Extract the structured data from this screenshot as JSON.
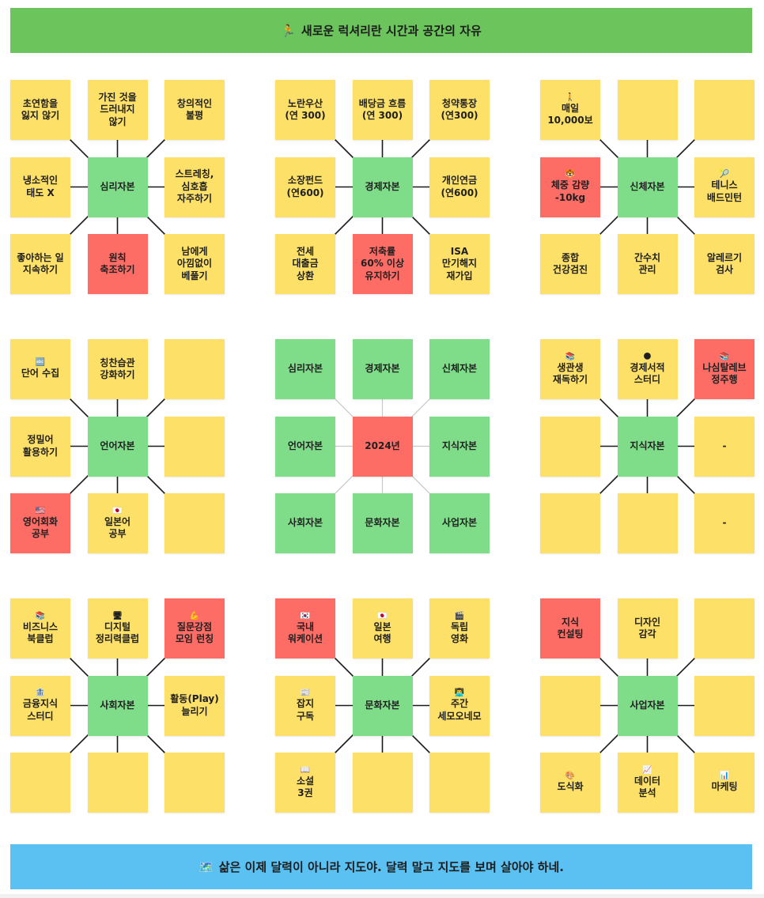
{
  "header": {
    "icon": "🏃",
    "title": "새로운 럭셔리란 시간과 공간의 자유"
  },
  "footer": {
    "icon": "🗺️",
    "text": "삶은 이제 달력이 아니라 지도야. 달력 말고 지도를 보며 살아야 하네."
  },
  "colors": {
    "yellow": "#fde068",
    "green": "#7fdd8a",
    "red": "#fe6c66",
    "header": "#6cc45d",
    "footer": "#5bc0f2"
  },
  "blocks": [
    {
      "name": "psychology",
      "line_color": "#1a1a1a",
      "cells": [
        {
          "text": "초연함을\n잃지 않기",
          "color": "yellow",
          "icon": ""
        },
        {
          "text": "가진 것을\n드러내지\n않기",
          "color": "yellow",
          "icon": ""
        },
        {
          "text": "창의적인\n불평",
          "color": "yellow",
          "icon": ""
        },
        {
          "text": "냉소적인\n태도 X",
          "color": "yellow",
          "icon": ""
        },
        {
          "text": "심리자본",
          "color": "green",
          "icon": ""
        },
        {
          "text": "스트레칭,\n심호흡\n자주하기",
          "color": "yellow",
          "icon": ""
        },
        {
          "text": "좋아하는 일\n지속하기",
          "color": "yellow",
          "icon": ""
        },
        {
          "text": "원칙\n축조하기",
          "color": "red",
          "icon": ""
        },
        {
          "text": "남에게\n아낌없이\n베풀기",
          "color": "yellow",
          "icon": ""
        }
      ]
    },
    {
      "name": "economy",
      "line_color": "#1a1a1a",
      "cells": [
        {
          "text": "노란우산\n(연 300)",
          "color": "yellow",
          "icon": ""
        },
        {
          "text": "배당금 흐름\n(연 300)",
          "color": "yellow",
          "icon": ""
        },
        {
          "text": "청약통장\n(연300)",
          "color": "yellow",
          "icon": ""
        },
        {
          "text": "소장펀드\n(연600)",
          "color": "yellow",
          "icon": ""
        },
        {
          "text": "경제자본",
          "color": "green",
          "icon": ""
        },
        {
          "text": "개인연금\n(연600)",
          "color": "yellow",
          "icon": ""
        },
        {
          "text": "전세\n대출금\n상환",
          "color": "yellow",
          "icon": ""
        },
        {
          "text": "저축률\n60% 이상\n유지하기",
          "color": "red",
          "icon": ""
        },
        {
          "text": "ISA\n만기해지\n재가입",
          "color": "yellow",
          "icon": ""
        }
      ]
    },
    {
      "name": "body",
      "line_color": "#1a1a1a",
      "cells": [
        {
          "text": "매일\n10,000보",
          "color": "yellow",
          "icon": "🚶"
        },
        {
          "text": "",
          "color": "yellow",
          "icon": ""
        },
        {
          "text": "",
          "color": "yellow",
          "icon": ""
        },
        {
          "text": "체중 감량\n-10kg",
          "color": "red",
          "icon": "🐯"
        },
        {
          "text": "신체자본",
          "color": "green",
          "icon": ""
        },
        {
          "text": "테니스\n배드민턴",
          "color": "yellow",
          "icon": "🎾"
        },
        {
          "text": "종합\n건강검진",
          "color": "yellow",
          "icon": ""
        },
        {
          "text": "간수치\n관리",
          "color": "yellow",
          "icon": ""
        },
        {
          "text": "알레르기\n검사",
          "color": "yellow",
          "icon": ""
        }
      ]
    },
    {
      "name": "language",
      "line_color": "#1a1a1a",
      "cells": [
        {
          "text": "단어 수집",
          "color": "yellow",
          "icon": "🔤"
        },
        {
          "text": "칭찬습관\n강화하기",
          "color": "yellow",
          "icon": ""
        },
        {
          "text": "",
          "color": "yellow",
          "icon": ""
        },
        {
          "text": "정밀어\n활용하기",
          "color": "yellow",
          "icon": ""
        },
        {
          "text": "언어자본",
          "color": "green",
          "icon": ""
        },
        {
          "text": "",
          "color": "yellow",
          "icon": ""
        },
        {
          "text": "영어회화\n공부",
          "color": "red",
          "icon": "🇺🇸"
        },
        {
          "text": "일본어\n공부",
          "color": "yellow",
          "icon": "🇯🇵"
        },
        {
          "text": "",
          "color": "yellow",
          "icon": ""
        }
      ]
    },
    {
      "name": "center",
      "line_color": "#c8c8c8",
      "cells": [
        {
          "text": "심리자본",
          "color": "green",
          "icon": ""
        },
        {
          "text": "경제자본",
          "color": "green",
          "icon": ""
        },
        {
          "text": "신체자본",
          "color": "green",
          "icon": ""
        },
        {
          "text": "언어자본",
          "color": "green",
          "icon": ""
        },
        {
          "text": "2024년",
          "color": "red",
          "icon": ""
        },
        {
          "text": "지식자본",
          "color": "green",
          "icon": ""
        },
        {
          "text": "사회자본",
          "color": "green",
          "icon": ""
        },
        {
          "text": "문화자본",
          "color": "green",
          "icon": ""
        },
        {
          "text": "사업자본",
          "color": "green",
          "icon": ""
        }
      ]
    },
    {
      "name": "knowledge",
      "line_color": "#1a1a1a",
      "cells": [
        {
          "text": "생관생\n재독하기",
          "color": "yellow",
          "icon": "📚"
        },
        {
          "text": "경제서적\n스터디",
          "color": "yellow",
          "icon": "🌑"
        },
        {
          "text": "나심탈레브\n정주행",
          "color": "red",
          "icon": "📚"
        },
        {
          "text": "",
          "color": "yellow",
          "icon": ""
        },
        {
          "text": "지식자본",
          "color": "green",
          "icon": ""
        },
        {
          "text": "-",
          "color": "yellow",
          "icon": ""
        },
        {
          "text": "",
          "color": "yellow",
          "icon": ""
        },
        {
          "text": "",
          "color": "yellow",
          "icon": ""
        },
        {
          "text": "-",
          "color": "yellow",
          "icon": ""
        }
      ]
    },
    {
      "name": "social",
      "line_color": "#1a1a1a",
      "cells": [
        {
          "text": "비즈니스\n북클럽",
          "color": "yellow",
          "icon": "📚"
        },
        {
          "text": "디지털\n정리력클럽",
          "color": "yellow",
          "icon": "🖥"
        },
        {
          "text": "질문강점\n모임 런칭",
          "color": "red",
          "icon": "💪"
        },
        {
          "text": "금융지식\n스터디",
          "color": "yellow",
          "icon": "🏦"
        },
        {
          "text": "사회자본",
          "color": "green",
          "icon": ""
        },
        {
          "text": "활동(Play)\n늘리기",
          "color": "yellow",
          "icon": ""
        },
        {
          "text": "",
          "color": "yellow",
          "icon": ""
        },
        {
          "text": "",
          "color": "yellow",
          "icon": ""
        },
        {
          "text": "",
          "color": "yellow",
          "icon": ""
        }
      ]
    },
    {
      "name": "culture",
      "line_color": "#1a1a1a",
      "cells": [
        {
          "text": "국내\n워케이션",
          "color": "red",
          "icon": "🇰🇷"
        },
        {
          "text": "일본\n여행",
          "color": "yellow",
          "icon": "🇯🇵"
        },
        {
          "text": "독립\n영화",
          "color": "yellow",
          "icon": "🎬"
        },
        {
          "text": "잡지\n구독",
          "color": "yellow",
          "icon": "📰"
        },
        {
          "text": "문화자본",
          "color": "green",
          "icon": ""
        },
        {
          "text": "주간\n세모오네모",
          "color": "yellow",
          "icon": "👨‍💻"
        },
        {
          "text": "소설\n3권",
          "color": "yellow",
          "icon": "📖"
        },
        {
          "text": "",
          "color": "yellow",
          "icon": ""
        },
        {
          "text": "",
          "color": "yellow",
          "icon": ""
        }
      ]
    },
    {
      "name": "business",
      "line_color": "#1a1a1a",
      "cells": [
        {
          "text": "지식\n컨설팅",
          "color": "red",
          "icon": ""
        },
        {
          "text": "디자인\n감각",
          "color": "yellow",
          "icon": ""
        },
        {
          "text": "",
          "color": "yellow",
          "icon": ""
        },
        {
          "text": "",
          "color": "yellow",
          "icon": ""
        },
        {
          "text": "사업자본",
          "color": "green",
          "icon": ""
        },
        {
          "text": "",
          "color": "yellow",
          "icon": ""
        },
        {
          "text": "도식화",
          "color": "yellow",
          "icon": "🎨"
        },
        {
          "text": "데이터\n분석",
          "color": "yellow",
          "icon": "📈"
        },
        {
          "text": "마케팅",
          "color": "yellow",
          "icon": "📊"
        }
      ]
    }
  ]
}
